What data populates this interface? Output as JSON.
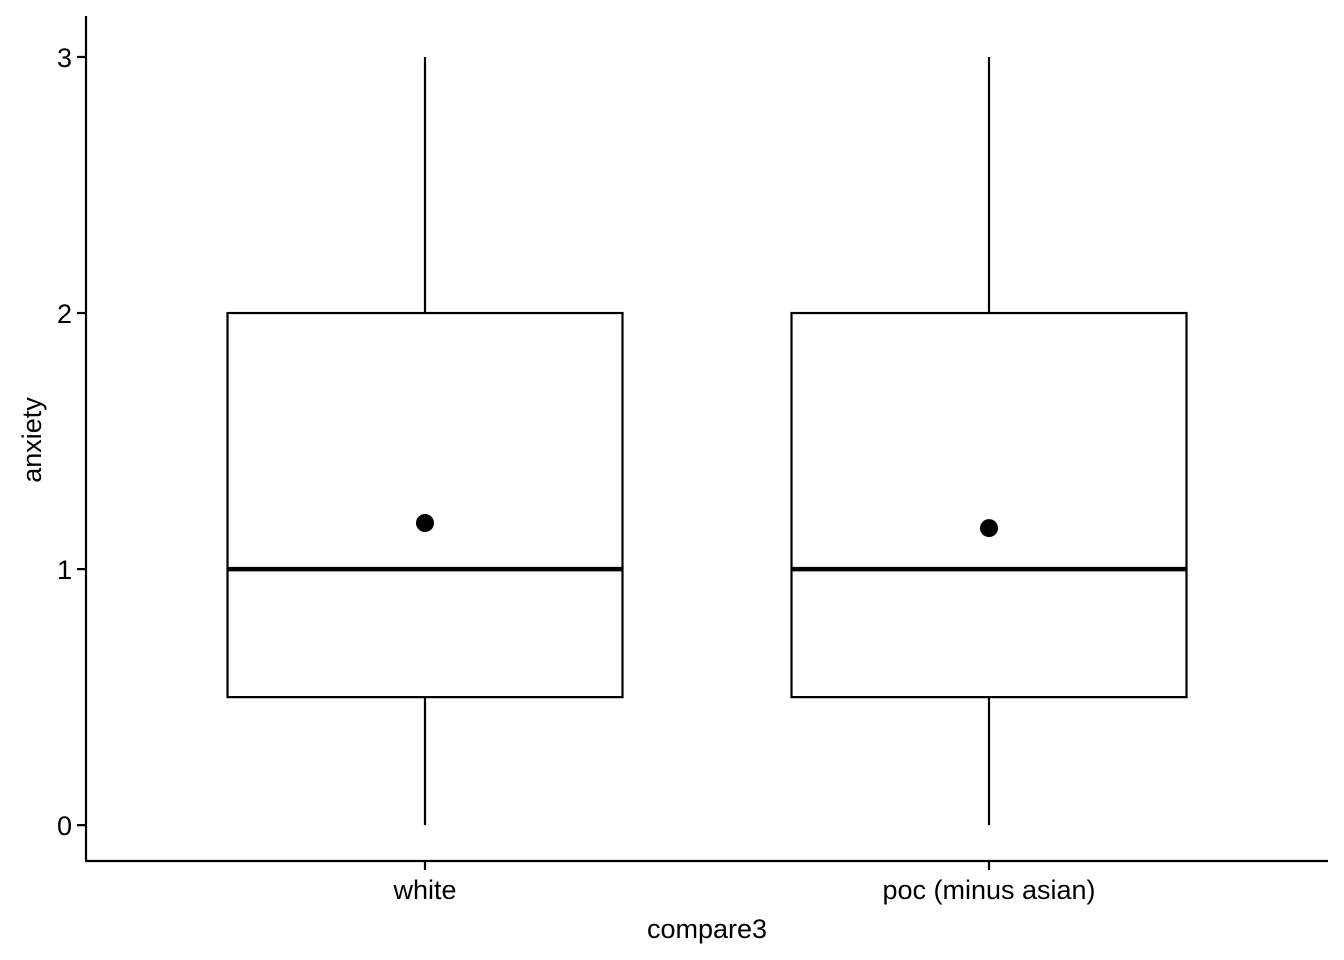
{
  "chart_data": {
    "type": "boxplot",
    "xlabel": "compare3",
    "ylabel": "anxiety",
    "categories": [
      "white",
      "poc (minus asian)"
    ],
    "y_ticks": [
      0,
      1,
      2,
      3
    ],
    "ylim": [
      -0.14,
      3.16
    ],
    "grid": false,
    "legend": "none",
    "boxes": [
      {
        "category": "white",
        "min": 0,
        "q1": 0.5,
        "median": 1,
        "q3": 2,
        "max": 3,
        "mean": 1.18
      },
      {
        "category": "poc (minus asian)",
        "min": 0,
        "q1": 0.5,
        "median": 1,
        "q3": 2,
        "max": 3,
        "mean": 1.16
      }
    ]
  }
}
